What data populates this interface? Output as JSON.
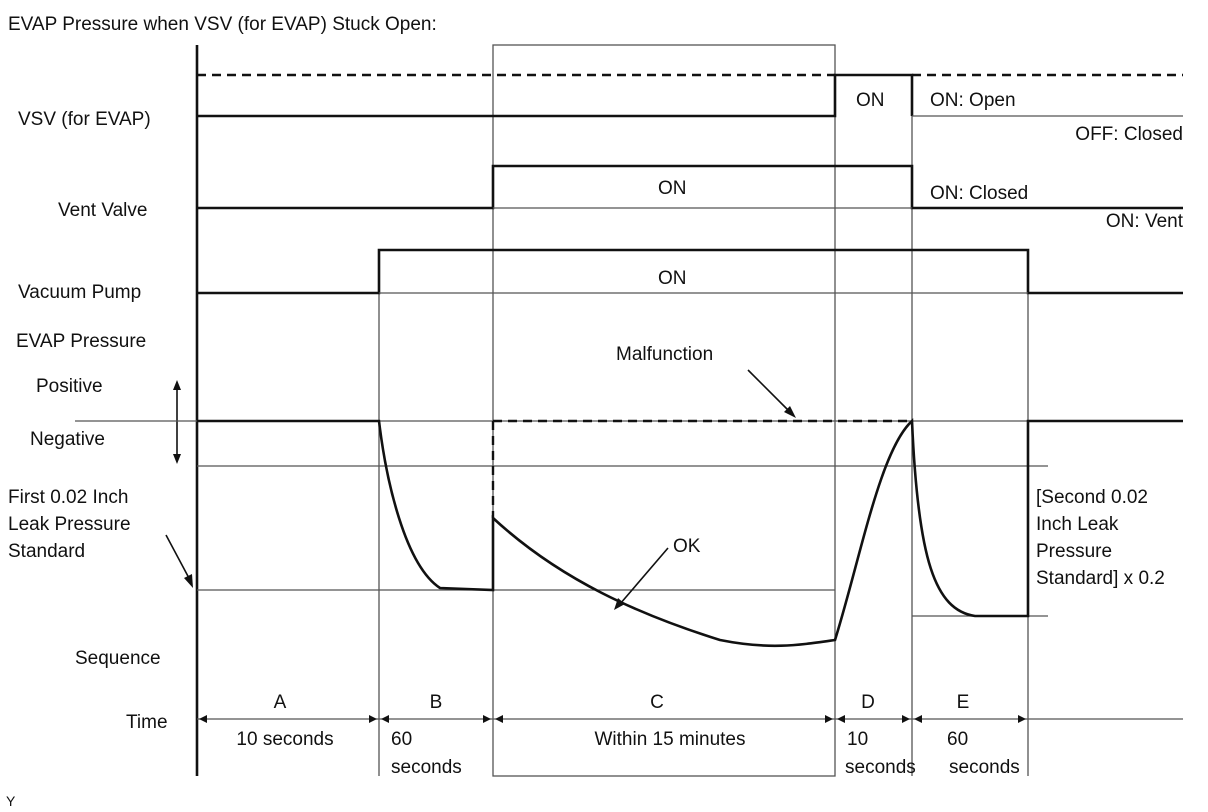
{
  "title": "EVAP Pressure when VSV (for EVAP) Stuck Open:",
  "footer_mark": "Y",
  "rows": {
    "vsv": "VSV (for EVAP)",
    "vent_valve": "Vent Valve",
    "vacuum_pump": "Vacuum Pump",
    "evap_pressure": "EVAP Pressure",
    "positive": "Positive",
    "negative": "Negative",
    "sequence": "Sequence",
    "time": "Time"
  },
  "states": {
    "vsv_on": "ON",
    "vsv_on_desc": "ON: Open",
    "vsv_off_desc": "OFF: Closed",
    "vent_on": "ON",
    "vent_on_closed": "ON: Closed",
    "vent_on_vent": "ON: Vent",
    "pump_on": "ON"
  },
  "annotations": {
    "first_std_1": "First 0.02 Inch",
    "first_std_2": "Leak Pressure",
    "first_std_3": "Standard",
    "second_std_1": "[Second 0.02",
    "second_std_2": "Inch Leak",
    "second_std_3": "Pressure",
    "second_std_4": "Standard] x 0.2",
    "malfunction": "Malfunction",
    "ok": "OK"
  },
  "sequence": [
    {
      "id": "A",
      "time_1": "10 seconds",
      "time_2": ""
    },
    {
      "id": "B",
      "time_1": "60",
      "time_2": "seconds"
    },
    {
      "id": "C",
      "time_1": "Within 15 minutes",
      "time_2": ""
    },
    {
      "id": "D",
      "time_1": "10",
      "time_2": "seconds"
    },
    {
      "id": "E",
      "time_1": "60",
      "time_2": "seconds"
    }
  ]
}
